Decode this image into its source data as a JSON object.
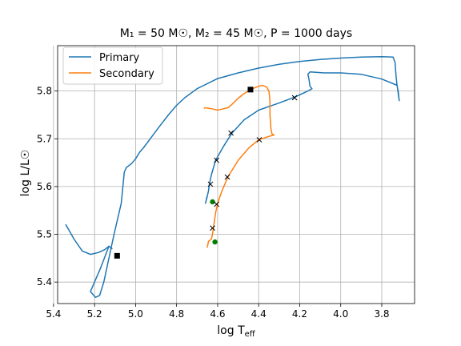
{
  "chart_data": {
    "type": "line",
    "title": "M₁ = 50 M☉, M₂ = 45 M☉, P = 1000 days",
    "xlabel": "log T",
    "xlabel_sub": "eff",
    "ylabel": "log L/L☉",
    "xlim": [
      5.38,
      3.64
    ],
    "ylim": [
      5.355,
      5.895
    ],
    "x_inverted": true,
    "grid": true,
    "x_ticks": [
      5.4,
      5.2,
      5.0,
      4.8,
      4.6,
      4.4,
      4.2,
      4.0,
      3.8
    ],
    "x_tick_labels": [
      "5.4",
      "5.2",
      "5.0",
      "4.8",
      "4.6",
      "4.4",
      "4.2",
      "4.0",
      "3.8"
    ],
    "y_ticks": [
      5.4,
      5.5,
      5.6,
      5.7,
      5.8
    ],
    "y_tick_labels": [
      "5.4",
      "5.5",
      "5.6",
      "5.7",
      "5.8"
    ],
    "legend_position": "top-left",
    "colors": {
      "primary": "#1f77b4",
      "secondary": "#ff7f0e",
      "marker_green": "#008000",
      "marker_black": "#000000"
    },
    "series": [
      {
        "name": "Primary",
        "color": "#1f77b4",
        "points": [
          [
            5.34,
            5.52
          ],
          [
            5.3,
            5.49
          ],
          [
            5.26,
            5.465
          ],
          [
            5.22,
            5.458
          ],
          [
            5.18,
            5.462
          ],
          [
            5.15,
            5.468
          ],
          [
            5.13,
            5.475
          ],
          [
            5.115,
            5.47
          ],
          [
            5.13,
            5.475
          ],
          [
            5.17,
            5.43
          ],
          [
            5.2,
            5.4
          ],
          [
            5.22,
            5.38
          ],
          [
            5.195,
            5.368
          ],
          [
            5.175,
            5.372
          ],
          [
            5.155,
            5.4
          ],
          [
            5.13,
            5.45
          ],
          [
            5.105,
            5.5
          ],
          [
            5.07,
            5.565
          ],
          [
            5.055,
            5.63
          ],
          [
            5.045,
            5.64
          ],
          [
            5.02,
            5.648
          ],
          [
            5.0,
            5.658
          ],
          [
            4.98,
            5.672
          ],
          [
            4.96,
            5.682
          ],
          [
            4.92,
            5.705
          ],
          [
            4.88,
            5.728
          ],
          [
            4.84,
            5.75
          ],
          [
            4.8,
            5.77
          ],
          [
            4.76,
            5.786
          ],
          [
            4.7,
            5.805
          ],
          [
            4.6,
            5.826
          ],
          [
            4.5,
            5.838
          ],
          [
            4.4,
            5.848
          ],
          [
            4.3,
            5.856
          ],
          [
            4.2,
            5.862
          ],
          [
            4.1,
            5.866
          ],
          [
            4.0,
            5.869
          ],
          [
            3.9,
            5.871
          ],
          [
            3.8,
            5.872
          ],
          [
            3.745,
            5.871
          ],
          [
            3.735,
            5.86
          ],
          [
            3.73,
            5.83
          ],
          [
            3.725,
            5.81
          ],
          [
            3.72,
            5.8
          ],
          [
            3.715,
            5.78
          ],
          [
            3.725,
            5.812
          ],
          [
            3.8,
            5.825
          ],
          [
            3.9,
            5.835
          ],
          [
            4.0,
            5.838
          ],
          [
            4.08,
            5.838
          ],
          [
            4.15,
            5.84
          ],
          [
            4.16,
            5.835
          ],
          [
            4.155,
            5.825
          ],
          [
            4.15,
            5.81
          ],
          [
            4.14,
            5.805
          ],
          [
            4.16,
            5.8
          ],
          [
            4.22,
            5.788
          ],
          [
            4.3,
            5.775
          ],
          [
            4.4,
            5.76
          ],
          [
            4.47,
            5.74
          ],
          [
            4.53,
            5.712
          ],
          [
            4.57,
            5.685
          ],
          [
            4.61,
            5.655
          ],
          [
            4.63,
            5.625
          ],
          [
            4.64,
            5.606
          ],
          [
            4.645,
            5.59
          ],
          [
            4.655,
            5.572
          ],
          [
            4.66,
            5.565
          ],
          [
            4.65,
            5.58
          ],
          [
            4.655,
            5.575
          ]
        ]
      },
      {
        "name": "Secondary",
        "color": "#ff7f0e",
        "points": [
          [
            4.65,
            5.473
          ],
          [
            4.645,
            5.485
          ],
          [
            4.63,
            5.49
          ],
          [
            4.625,
            5.5
          ],
          [
            4.62,
            5.515
          ],
          [
            4.615,
            5.53
          ],
          [
            4.61,
            5.545
          ],
          [
            4.6,
            5.565
          ],
          [
            4.58,
            5.59
          ],
          [
            4.55,
            5.62
          ],
          [
            4.5,
            5.655
          ],
          [
            4.45,
            5.68
          ],
          [
            4.4,
            5.698
          ],
          [
            4.35,
            5.705
          ],
          [
            4.325,
            5.708
          ],
          [
            4.335,
            5.71
          ],
          [
            4.34,
            5.72
          ],
          [
            4.345,
            5.75
          ],
          [
            4.345,
            5.78
          ],
          [
            4.35,
            5.8
          ],
          [
            4.36,
            5.808
          ],
          [
            4.38,
            5.812
          ],
          [
            4.4,
            5.81
          ],
          [
            4.43,
            5.805
          ],
          [
            4.47,
            5.795
          ],
          [
            4.5,
            5.785
          ],
          [
            4.535,
            5.77
          ],
          [
            4.55,
            5.765
          ],
          [
            4.58,
            5.762
          ],
          [
            4.6,
            5.76
          ],
          [
            4.63,
            5.763
          ],
          [
            4.66,
            5.765
          ],
          [
            4.665,
            5.764
          ]
        ]
      }
    ],
    "markers": {
      "black_squares": [
        [
          5.09,
          5.455
        ],
        [
          4.44,
          5.803
        ]
      ],
      "crosses": [
        [
          4.225,
          5.786
        ],
        [
          4.535,
          5.712
        ],
        [
          4.605,
          5.655
        ],
        [
          4.635,
          5.605
        ],
        [
          4.397,
          5.698
        ],
        [
          4.553,
          5.62
        ],
        [
          4.605,
          5.563
        ],
        [
          4.625,
          5.513
        ]
      ],
      "green_circles": [
        [
          4.625,
          5.568
        ],
        [
          4.613,
          5.484
        ]
      ]
    }
  }
}
